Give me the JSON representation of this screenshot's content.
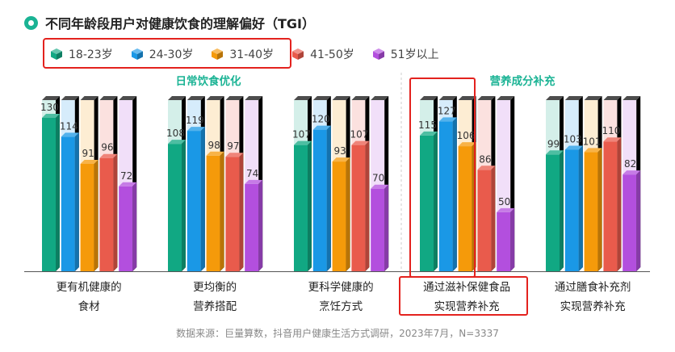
{
  "title": "不同年龄段用户对健康饮食的理解偏好（TGI）",
  "source": "数据来源：巨量算数，抖音用户健康生活方式调研，2023年7月，N=3337",
  "groups": [
    {
      "label": "日常饮食优化"
    },
    {
      "label": "营养成分补充"
    }
  ],
  "chart_data": {
    "type": "bar",
    "title": "不同年龄段用户对健康饮食的理解偏好（TGI）",
    "categories": [
      "更有机健康的食材",
      "更均衡的营养搭配",
      "更科学健康的烹饪方式",
      "通过滋补保健食品实现营养补充",
      "通过膳食补充剂实现营养补充"
    ],
    "category_lines": [
      [
        "更有机健康的",
        "食材"
      ],
      [
        "更均衡的",
        "营养搭配"
      ],
      [
        "更科学健康的",
        "烹饪方式"
      ],
      [
        "通过滋补保健食品",
        "实现营养补充"
      ],
      [
        "通过膳食补充剂",
        "实现营养补充"
      ]
    ],
    "series": [
      {
        "name": "18-23岁",
        "color": "#11a883",
        "values": [
          130,
          108,
          107,
          115,
          99
        ]
      },
      {
        "name": "24-30岁",
        "color": "#1a98e6",
        "values": [
          114,
          119,
          120,
          127,
          103
        ]
      },
      {
        "name": "31-40岁",
        "color": "#f59a0a",
        "values": [
          91,
          98,
          93,
          106,
          101
        ]
      },
      {
        "name": "41-50岁",
        "color": "#e95b4c",
        "values": [
          96,
          97,
          107,
          86,
          110
        ]
      },
      {
        "name": "51岁以上",
        "color": "#b34fde",
        "values": [
          72,
          74,
          70,
          50,
          82
        ]
      }
    ],
    "legend_position": "top-left",
    "grid": false,
    "ylim": [
      0,
      130
    ]
  }
}
